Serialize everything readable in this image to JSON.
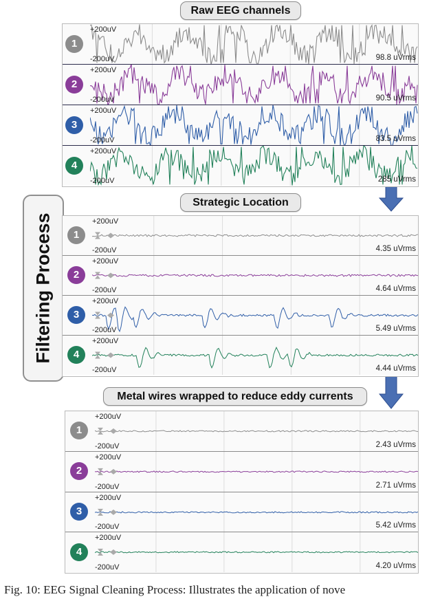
{
  "labels": {
    "raw": "Raw EEG channels",
    "strategic": "Strategic Location",
    "metal": "Metal wires wrapped to reduce eddy currents",
    "side": "Filtering Process"
  },
  "colors": {
    "ch1": "#8c8c8c",
    "ch2": "#8a3d99",
    "ch3": "#2f5ea8",
    "ch4": "#22815a",
    "arrow": "#4a6fb3"
  },
  "scale": {
    "top": "+200uV",
    "bottom": "-200uV"
  },
  "panels": [
    {
      "id": "raw",
      "channels": [
        {
          "num": "1",
          "rms": "98.8 uVrms"
        },
        {
          "num": "2",
          "rms": "90.5 uVrms"
        },
        {
          "num": "3",
          "rms": "83.5 uVrms"
        },
        {
          "num": "4",
          "rms": "285 uVrms"
        }
      ]
    },
    {
      "id": "strategic",
      "channels": [
        {
          "num": "1",
          "rms": "4.35 uVrms"
        },
        {
          "num": "2",
          "rms": "4.64 uVrms"
        },
        {
          "num": "3",
          "rms": "5.49 uVrms"
        },
        {
          "num": "4",
          "rms": "4.44 uVrms"
        }
      ]
    },
    {
      "id": "metal",
      "channels": [
        {
          "num": "1",
          "rms": "2.43 uVrms"
        },
        {
          "num": "2",
          "rms": "2.71 uVrms"
        },
        {
          "num": "3",
          "rms": "5.42 uVrms"
        },
        {
          "num": "4",
          "rms": "4.20 uVrms"
        }
      ]
    }
  ],
  "caption": "Fig. 10: EEG Signal Cleaning Process: Illustrates the application of nove"
}
